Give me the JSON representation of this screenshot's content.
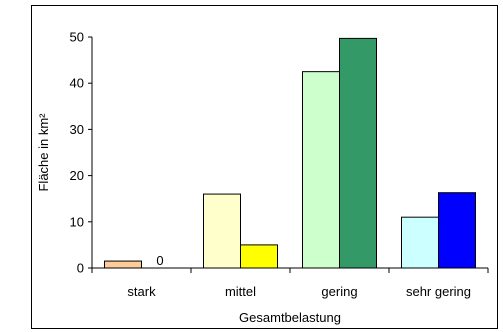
{
  "chart_data": {
    "type": "bar",
    "categories": [
      "stark",
      "mittel",
      "gering",
      "sehr gering"
    ],
    "series": [
      {
        "values": [
          1.5,
          16,
          42.5,
          11
        ],
        "colors": [
          "#ffcc99",
          "#ffffcc",
          "#ccffcc",
          "#ccffff"
        ]
      },
      {
        "values": [
          0,
          5,
          49.7,
          16.3
        ],
        "colors": [
          "#ffffff",
          "#ffff00",
          "#339966",
          "#0000ff"
        ]
      }
    ],
    "data_labels": [
      {
        "category_index": 0,
        "series_index": 1,
        "text": "0"
      }
    ],
    "xlabel": "Gesamtbelastung",
    "ylabel": "Fläche in km²",
    "ylim": [
      0,
      50
    ],
    "yticks": [
      0,
      10,
      20,
      30,
      40,
      50
    ],
    "grid": false,
    "legend": "none"
  }
}
